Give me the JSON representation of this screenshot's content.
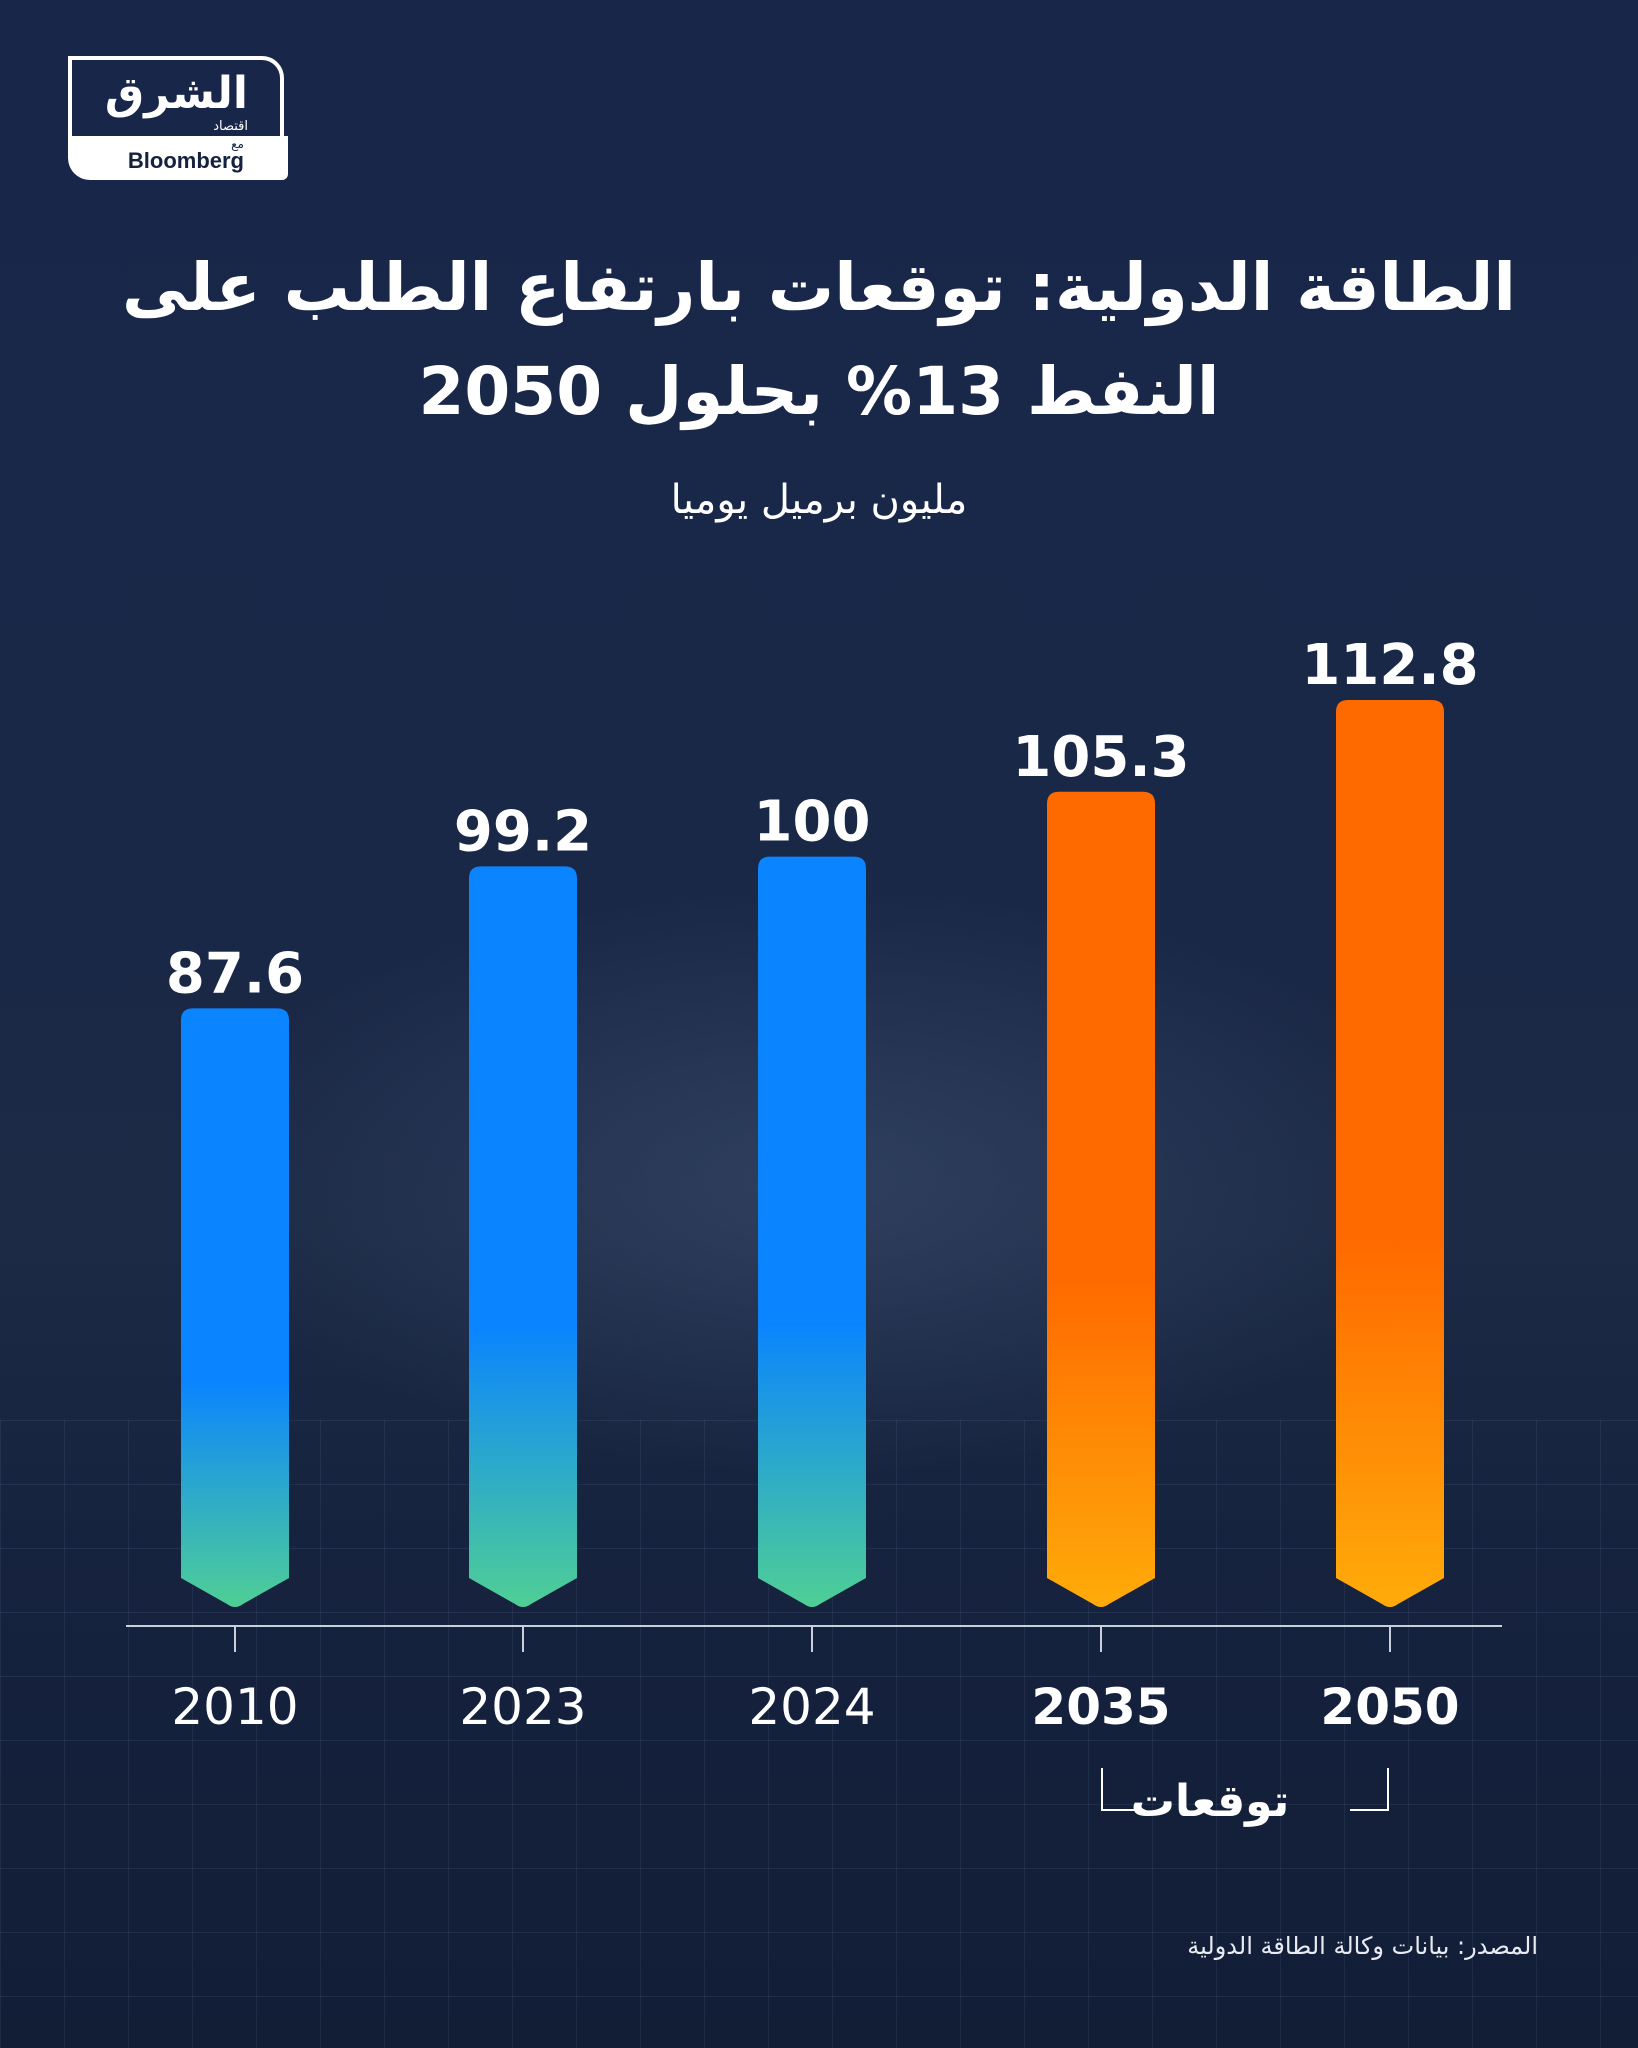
{
  "brand": {
    "name": "الشرق",
    "sub": "اقتصاد",
    "partner_prefix": "مع",
    "partner": "Bloomberg"
  },
  "title": "الطاقة الدولية: توقعات بارتفاع الطلب على النفط 13% بحلول 2050",
  "unit_label": "مليون برميل يوميا",
  "forecast_label": "توقعات",
  "source": "المصدر: بيانات وكالة الطاقة الدولية",
  "colors": {
    "actual_top": "#0a84ff",
    "actual_bottom": "#4fcf95",
    "forecast_top": "#ff6a00",
    "forecast_bottom": "#ffab0a"
  },
  "chart_data": {
    "type": "bar",
    "title": "الطاقة الدولية: توقعات بارتفاع الطلب على النفط 13% بحلول 2050",
    "ylabel": "مليون برميل يوميا",
    "xlabel": "",
    "categories": [
      "2010",
      "2023",
      "2024",
      "2035",
      "2050"
    ],
    "values": [
      87.6,
      99.2,
      100,
      105.3,
      112.8
    ],
    "value_labels": [
      "87.6",
      "99.2",
      "100",
      "105.3",
      "112.8"
    ],
    "forecast": [
      false,
      false,
      false,
      true,
      true
    ],
    "ylim": [
      0,
      112.8
    ],
    "grid": false,
    "legend": "none"
  }
}
